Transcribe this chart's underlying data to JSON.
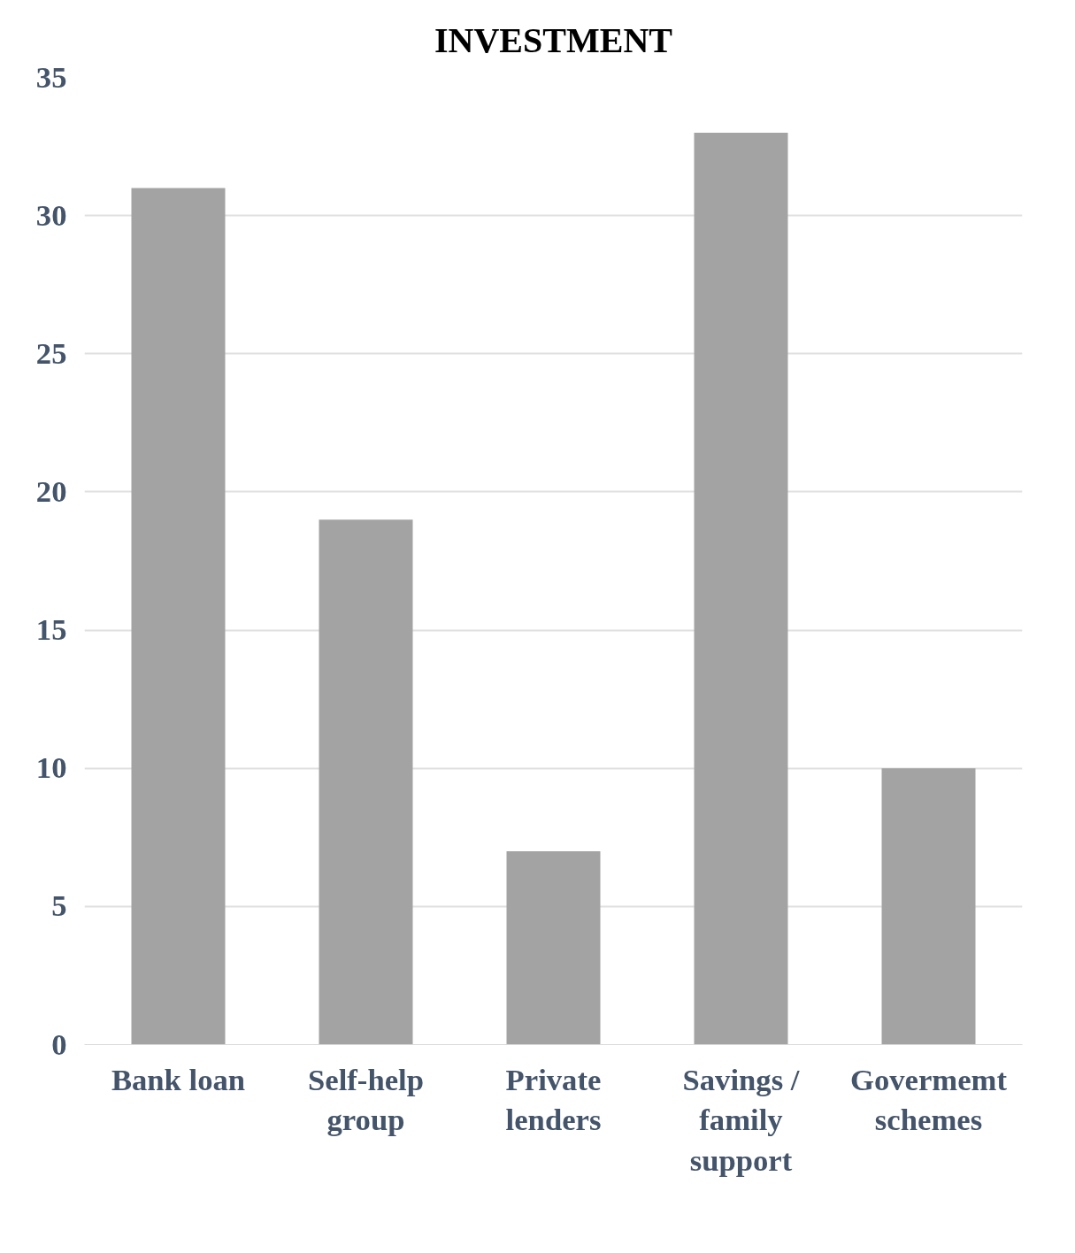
{
  "chart_data": {
    "type": "bar",
    "title": "INVESTMENT",
    "categories": [
      "Bank loan",
      "Self-help group",
      "Private lenders",
      "Savings / family support",
      "Govermemt schemes"
    ],
    "values": [
      31,
      19,
      7,
      33,
      10
    ],
    "color": "#a3a3a3",
    "ylim": [
      0,
      35
    ],
    "yticks": [
      0,
      5,
      10,
      15,
      20,
      25,
      30,
      35
    ],
    "grid": "y"
  }
}
